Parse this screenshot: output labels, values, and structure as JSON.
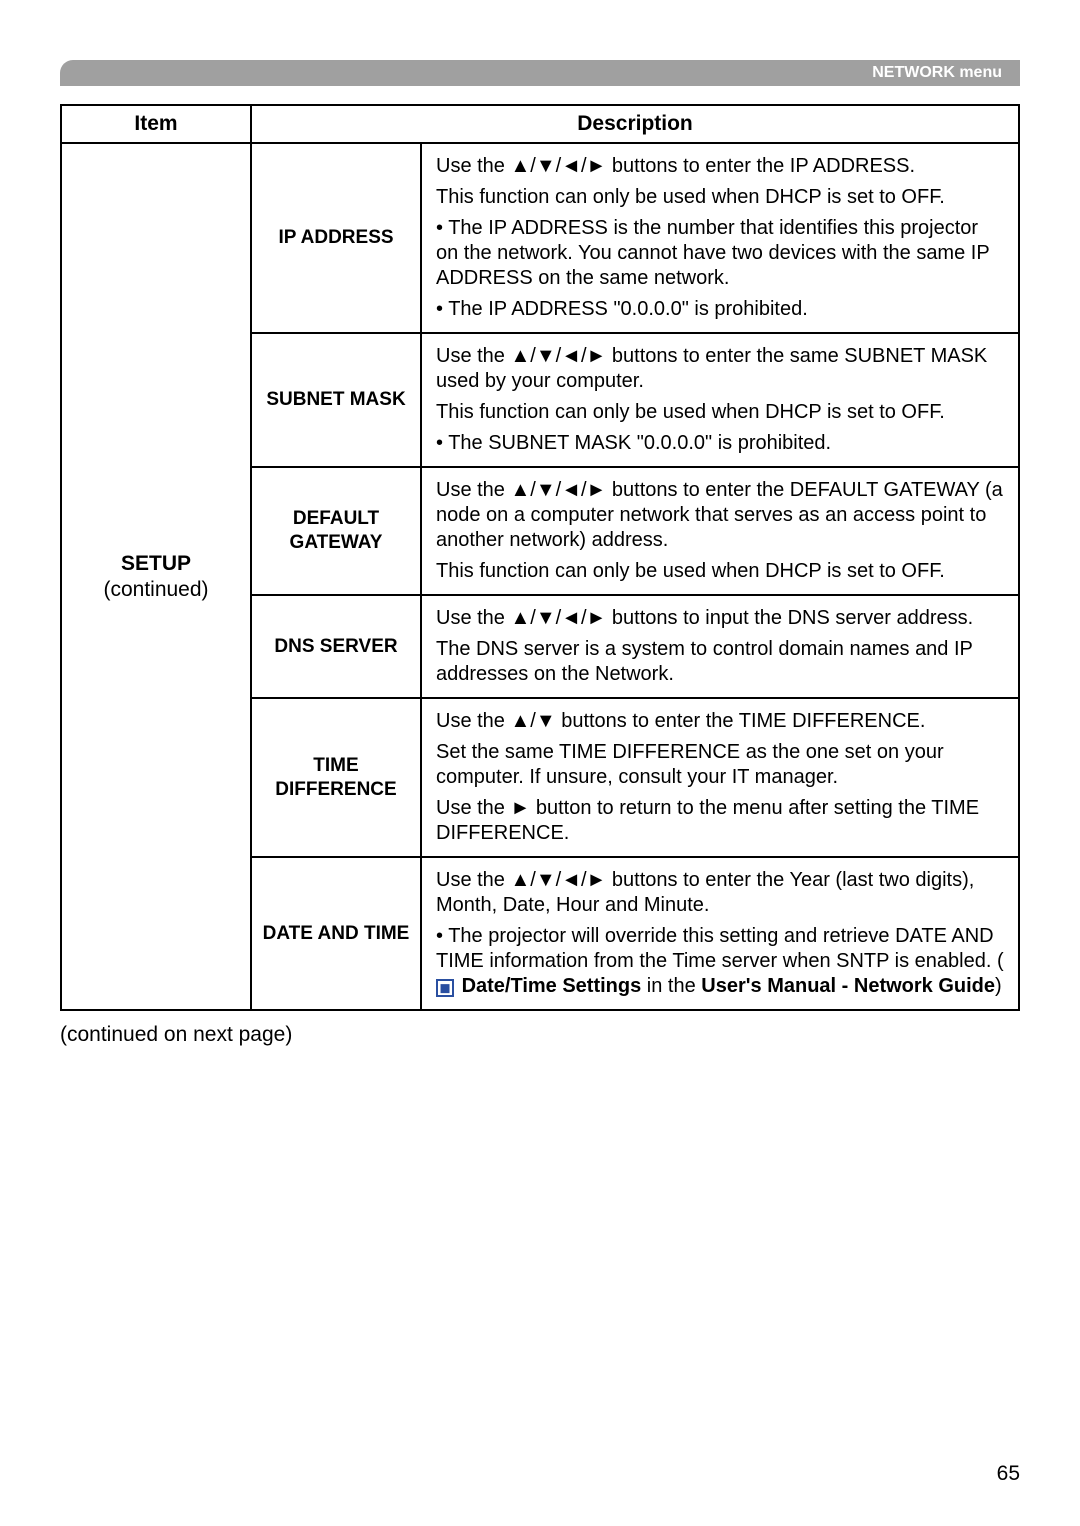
{
  "header": {
    "title": "NETWORK menu"
  },
  "columns": {
    "item": "Item",
    "description": "Description"
  },
  "group": {
    "title": "SETUP",
    "subtitle": "(continued)"
  },
  "arrows4": "▲/▼/◄/►",
  "arrows2": "▲/▼",
  "arrowR": "►",
  "rows": {
    "ip": {
      "label": "IP ADDRESS",
      "p1a": "Use the ",
      "p1b": " buttons to enter the IP ADDRESS.",
      "p2": "This function can only be used when DHCP is set to OFF.",
      "p3": "• The IP ADDRESS is the number that identifies this projector on the network. You cannot have two devices with the same IP ADDRESS on the same network.",
      "p4": "• The IP ADDRESS \"0.0.0.0\" is prohibited."
    },
    "subnet": {
      "label": "SUBNET MASK",
      "p1a": "Use the ",
      "p1b": " buttons to enter the same SUBNET MASK used by your computer.",
      "p2": "This function can only be used when DHCP is set to OFF.",
      "p3": "• The SUBNET MASK \"0.0.0.0\" is prohibited."
    },
    "gateway": {
      "label": "DEFAULT GATEWAY",
      "p1a": "Use the ",
      "p1b": " buttons to enter the DEFAULT GATEWAY (a node on a computer network that serves as an access point to another network) address.",
      "p2": "This function can only be used when DHCP is set to OFF."
    },
    "dns": {
      "label": "DNS SERVER",
      "p1a": "Use the ",
      "p1b": " buttons to input the DNS server address.",
      "p2": "The DNS server is a system to control domain names and IP addresses on the Network."
    },
    "time": {
      "label": "TIME DIFFERENCE",
      "p1a": "Use the ",
      "p1b": " buttons to enter the TIME DIFFERENCE.",
      "p2": "Set the same TIME DIFFERENCE as the one set on your computer. If unsure, consult your IT manager.",
      "p3a": "Use the ",
      "p3b": " button to return to the menu after setting the TIME DIFFERENCE."
    },
    "date": {
      "label": "DATE AND TIME",
      "p1a": "Use the ",
      "p1b": " buttons to enter the Year (last two digits), Month, Date, Hour and Minute.",
      "p2a": "• The projector will override this setting and retrieve DATE AND TIME information from the Time server when SNTP is enabled. (",
      "p2ref": "Date/Time Settings",
      "p2b": " in the ",
      "p2manual": "User's Manual - Network Guide",
      "p2c": ")"
    }
  },
  "footer": {
    "continued": "(continued on next page)",
    "page": "65"
  }
}
